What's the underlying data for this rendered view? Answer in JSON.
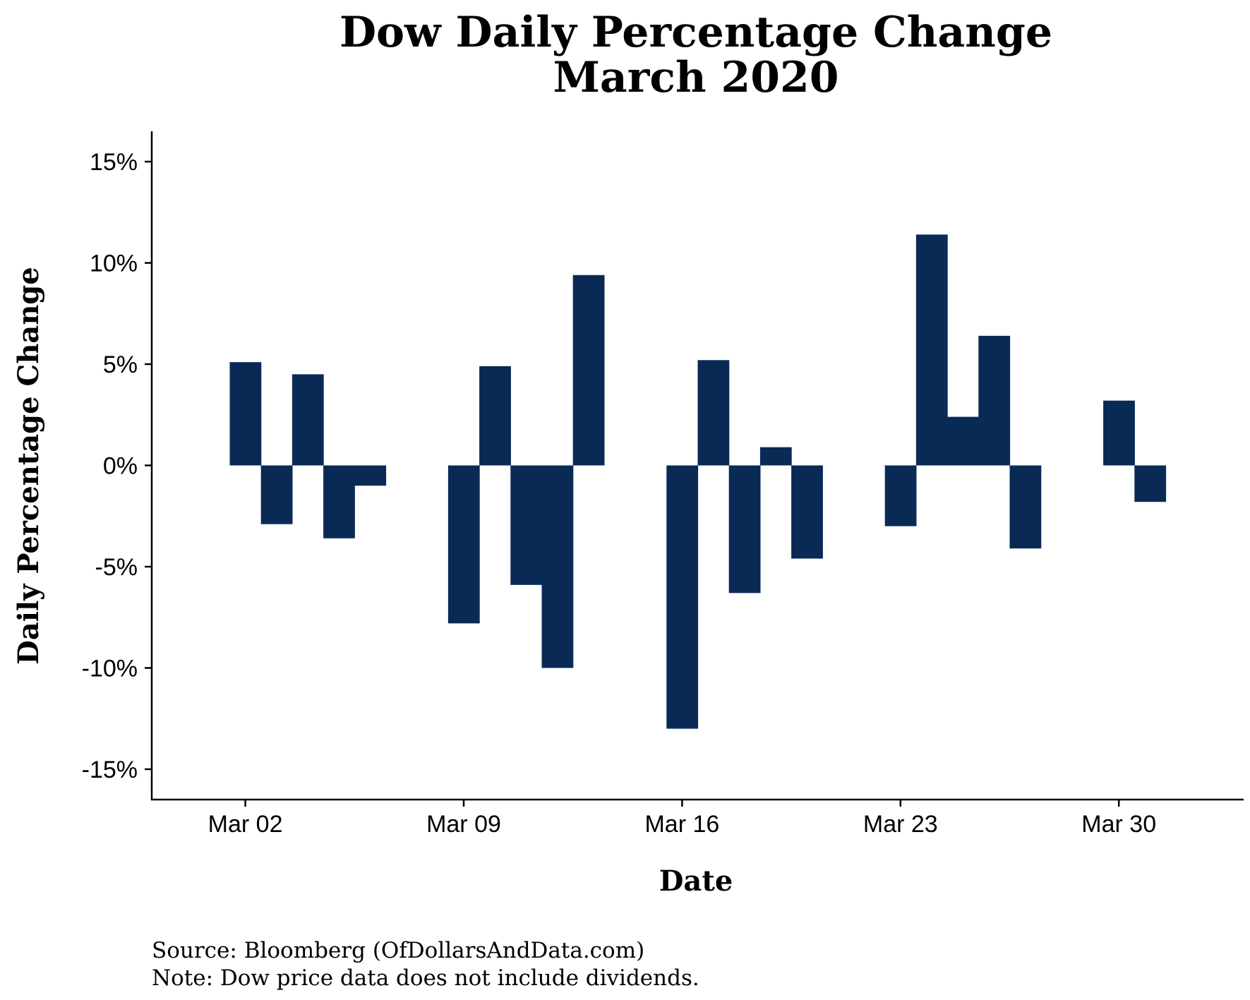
{
  "chart_data": {
    "type": "bar",
    "title": "Dow Daily Percentage Change",
    "subtitle": "March 2020",
    "xlabel": "Date",
    "ylabel": "Daily Percentage Change",
    "ylim": [
      -16.5,
      16.5
    ],
    "y_ticks": [
      15,
      10,
      5,
      0,
      -5,
      -10,
      -15
    ],
    "y_tick_labels": [
      "15%",
      "10%",
      "5%",
      "0%",
      "-5%",
      "-10%",
      "-15%"
    ],
    "x_range": [
      "2020-02-28",
      "2020-04-03"
    ],
    "x_ticks": [
      "2020-03-02",
      "2020-03-09",
      "2020-03-16",
      "2020-03-23",
      "2020-03-30"
    ],
    "x_tick_labels": [
      "Mar 02",
      "Mar 09",
      "Mar 16",
      "Mar 23",
      "Mar 30"
    ],
    "dates": [
      "2020-03-02",
      "2020-03-03",
      "2020-03-04",
      "2020-03-05",
      "2020-03-06",
      "2020-03-09",
      "2020-03-10",
      "2020-03-11",
      "2020-03-12",
      "2020-03-13",
      "2020-03-16",
      "2020-03-17",
      "2020-03-18",
      "2020-03-19",
      "2020-03-20",
      "2020-03-23",
      "2020-03-24",
      "2020-03-25",
      "2020-03-26",
      "2020-03-27",
      "2020-03-30",
      "2020-03-31"
    ],
    "values": [
      5.1,
      -2.9,
      4.5,
      -3.6,
      -1.0,
      -7.8,
      4.9,
      -5.9,
      -10.0,
      9.4,
      -13.0,
      5.2,
      -6.3,
      0.9,
      -4.6,
      -3.0,
      11.4,
      2.4,
      6.4,
      -4.1,
      3.2,
      -1.8
    ],
    "bar_color": "#0a2a56",
    "grid": false,
    "source": "Source: Bloomberg (OfDollarsAndData.com)",
    "note": "Note: Dow price data does not include dividends."
  }
}
